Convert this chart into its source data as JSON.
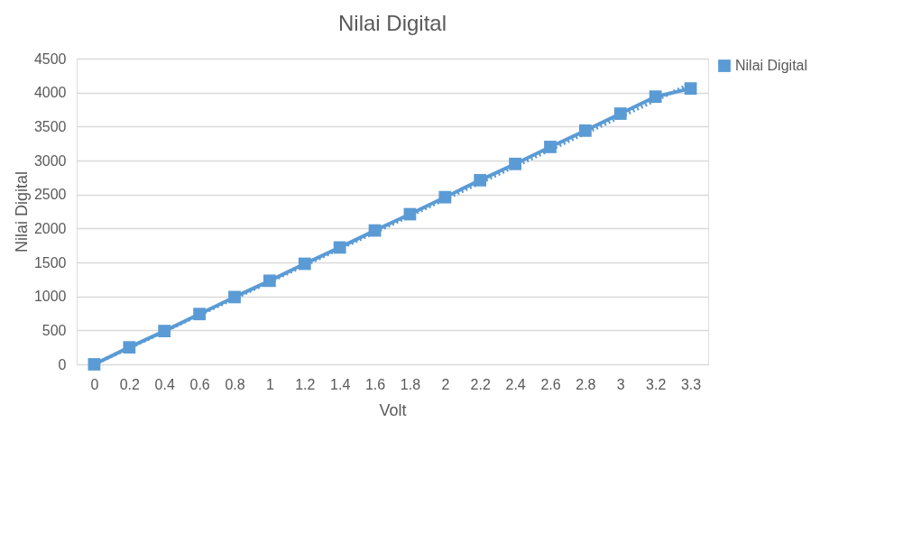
{
  "chart_data": {
    "type": "line",
    "title": "Nilai Digital",
    "xlabel": "Volt",
    "ylabel": "Nilai Digital",
    "categories": [
      "0",
      "0.2",
      "0.4",
      "0.6",
      "0.8",
      "1",
      "1.2",
      "1.4",
      "1.6",
      "1.8",
      "2",
      "2.2",
      "2.4",
      "2.6",
      "2.8",
      "3",
      "3.2",
      "3.3"
    ],
    "series": [
      {
        "color": "#5b9bd5",
        "line_style": "dotted",
        "x": [
          "0",
          "3.3"
        ],
        "values": [
          0,
          4130
        ]
      },
      {
        "name": "Nilai Digital",
        "color": "#5b9bd5",
        "marker": "square",
        "line_style": "solid",
        "values": [
          0,
          250,
          490,
          740,
          990,
          1230,
          1480,
          1720,
          1970,
          2210,
          2460,
          2710,
          2950,
          3200,
          3440,
          3690,
          3940,
          4060
        ]
      }
    ],
    "ylim": [
      0,
      4500
    ],
    "yticks": [
      0,
      500,
      1000,
      1500,
      2000,
      2500,
      3000,
      3500,
      4000,
      4500
    ],
    "grid": "y",
    "legend": "right"
  }
}
